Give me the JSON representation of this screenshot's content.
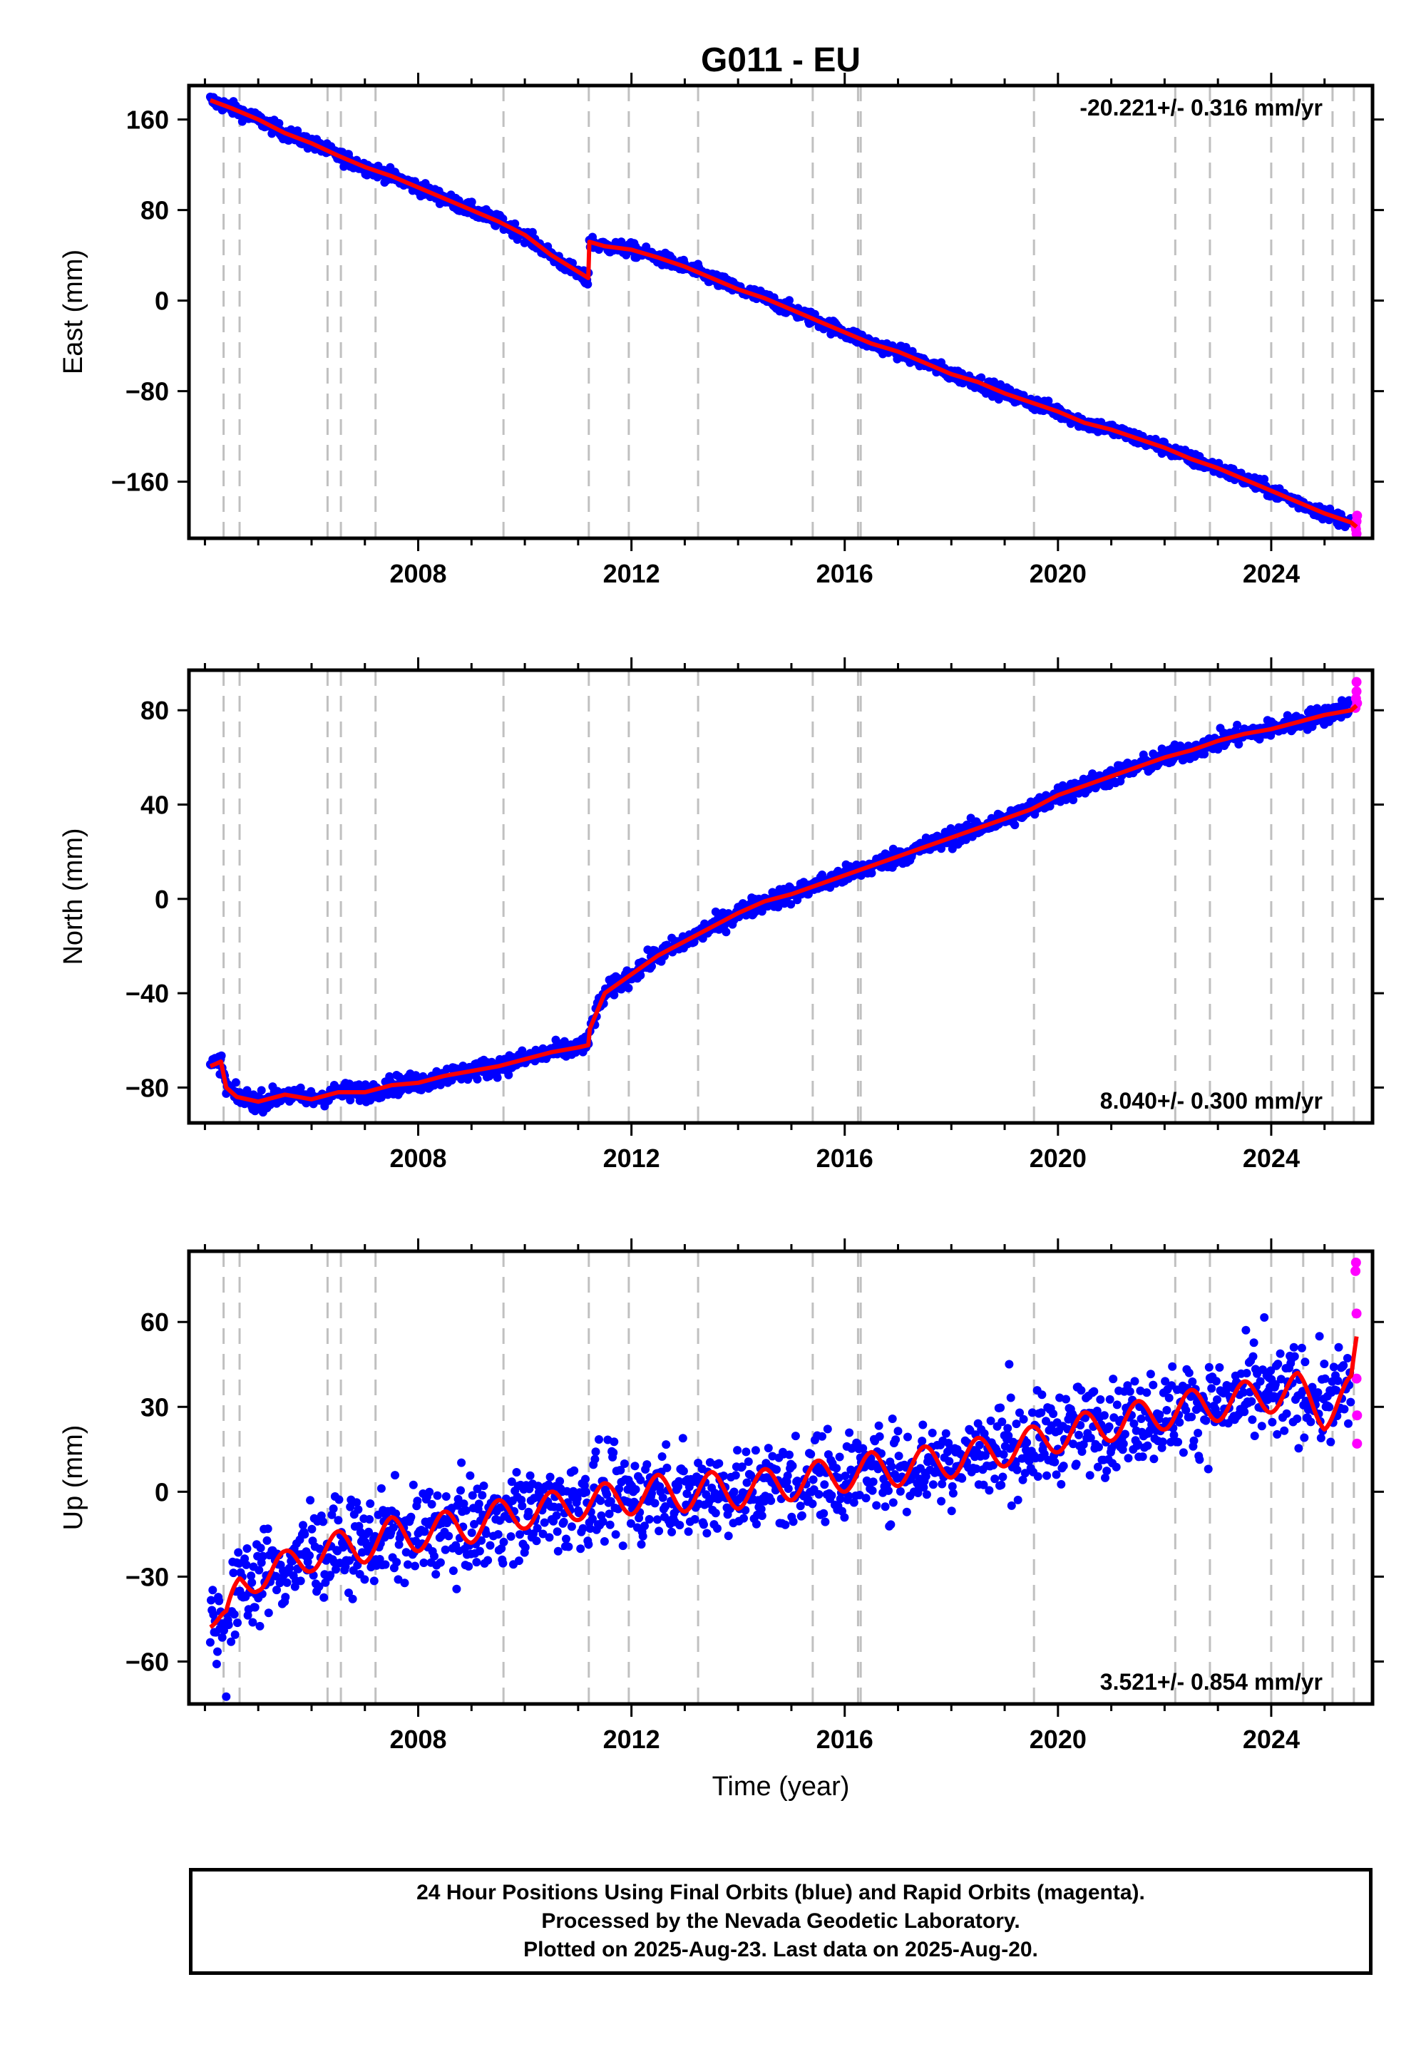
{
  "title": "G011 - EU",
  "xlabel": "Time (year)",
  "colors": {
    "final": "#0000ff",
    "rapid": "#ff00ff",
    "model": "#ff0000",
    "event_lines": "#c0c0c0"
  },
  "caption": [
    "24 Hour Positions Using Final Orbits (blue) and Rapid Orbits (magenta).",
    "Processed by the Nevada Geodetic Laboratory.",
    "Plotted on 2025-Aug-23. Last data on 2025-Aug-20."
  ],
  "chart_data": [
    {
      "type": "scatter",
      "ylabel": "East (mm)",
      "xlim": [
        2003.7,
        2025.9
      ],
      "ylim": [
        -210,
        190
      ],
      "xticks": [
        2008,
        2012,
        2016,
        2020,
        2024
      ],
      "yticks": [
        160,
        80,
        0,
        -80,
        -160
      ],
      "rate_label": "-20.221+/- 0.316 mm/yr",
      "rate_position": "top-right",
      "event_lines": [
        2004.35,
        2004.65,
        2006.3,
        2006.55,
        2007.2,
        2009.6,
        2011.2,
        2011.95,
        2013.25,
        2015.4,
        2016.25,
        2016.3,
        2019.55,
        2022.2,
        2022.85,
        2024.0,
        2024.6,
        2025.15,
        2025.55
      ],
      "series": [
        {
          "name": "Final Orbits (blue)",
          "mode": "points",
          "x": [
            2004.1,
            2004.5,
            2005.0,
            2005.5,
            2006.0,
            2006.5,
            2007.0,
            2007.5,
            2008.0,
            2008.5,
            2009.0,
            2009.5,
            2010.0,
            2010.5,
            2011.19,
            2011.21,
            2011.5,
            2012.0,
            2012.5,
            2013.0,
            2013.5,
            2014.0,
            2014.5,
            2015.0,
            2015.5,
            2016.0,
            2016.5,
            2017.0,
            2017.5,
            2018.0,
            2018.5,
            2019.0,
            2019.5,
            2020.0,
            2020.5,
            2021.0,
            2021.5,
            2022.0,
            2022.5,
            2023.0,
            2023.5,
            2024.0,
            2024.5,
            2025.0,
            2025.5
          ],
          "y": [
            177,
            170,
            160,
            148,
            139,
            128,
            118,
            110,
            100,
            90,
            80,
            70,
            58,
            40,
            17,
            52,
            48,
            45,
            38,
            30,
            20,
            10,
            2,
            -8,
            -18,
            -28,
            -38,
            -45,
            -55,
            -65,
            -72,
            -82,
            -90,
            -98,
            -108,
            -114,
            -122,
            -130,
            -140,
            -148,
            -158,
            -168,
            -178,
            -188,
            -196
          ],
          "noise": 3
        },
        {
          "name": "Rapid Orbits (magenta)",
          "mode": "points",
          "x": [
            2025.58,
            2025.59,
            2025.6,
            2025.6,
            2025.61
          ],
          "y": [
            -199,
            -202,
            -195,
            -206,
            -190
          ],
          "noise": 0
        },
        {
          "name": "Model",
          "mode": "line",
          "x": [
            2004.1,
            2004.5,
            2005.0,
            2005.5,
            2006.0,
            2006.5,
            2007.0,
            2007.5,
            2008.0,
            2008.5,
            2009.0,
            2009.5,
            2010.0,
            2010.5,
            2011.19,
            2011.21,
            2011.5,
            2012.0,
            2012.5,
            2013.0,
            2013.5,
            2014.0,
            2014.5,
            2015.0,
            2015.5,
            2016.0,
            2016.5,
            2017.0,
            2017.5,
            2018.0,
            2018.5,
            2019.0,
            2019.5,
            2020.0,
            2020.5,
            2021.0,
            2021.5,
            2022.0,
            2022.5,
            2023.0,
            2023.5,
            2024.0,
            2024.5,
            2025.0,
            2025.5,
            2025.6
          ],
          "y": [
            177,
            170,
            160,
            148,
            139,
            128,
            118,
            110,
            100,
            90,
            80,
            70,
            58,
            40,
            20,
            52,
            48,
            45,
            38,
            30,
            20,
            10,
            2,
            -8,
            -18,
            -28,
            -38,
            -45,
            -55,
            -65,
            -72,
            -82,
            -90,
            -98,
            -108,
            -114,
            -122,
            -130,
            -140,
            -148,
            -158,
            -168,
            -178,
            -188,
            -196,
            -200
          ]
        }
      ]
    },
    {
      "type": "scatter",
      "ylabel": "North (mm)",
      "xlim": [
        2003.7,
        2025.9
      ],
      "ylim": [
        -95,
        97
      ],
      "xticks": [
        2008,
        2012,
        2016,
        2020,
        2024
      ],
      "yticks": [
        80,
        40,
        0,
        -40,
        -80
      ],
      "rate_label": "8.040+/- 0.300 mm/yr",
      "rate_position": "bottom-right",
      "event_lines": [
        2004.35,
        2004.65,
        2006.3,
        2006.55,
        2007.2,
        2009.6,
        2011.2,
        2011.95,
        2013.25,
        2015.4,
        2016.25,
        2016.3,
        2019.55,
        2022.2,
        2022.85,
        2024.0,
        2024.6,
        2025.15,
        2025.55
      ],
      "series": [
        {
          "name": "Final Orbits (blue)",
          "mode": "points",
          "x": [
            2004.1,
            2004.3,
            2004.4,
            2004.6,
            2005.0,
            2005.5,
            2006.0,
            2006.5,
            2007.0,
            2007.5,
            2008.0,
            2008.5,
            2009.0,
            2009.5,
            2010.0,
            2010.5,
            2011.0,
            2011.19,
            2011.22,
            2011.5,
            2012.0,
            2012.5,
            2013.0,
            2013.5,
            2014.0,
            2014.5,
            2015.0,
            2015.5,
            2016.0,
            2016.5,
            2017.0,
            2017.5,
            2018.0,
            2018.5,
            2019.0,
            2019.5,
            2020.0,
            2020.5,
            2021.0,
            2021.5,
            2022.0,
            2022.5,
            2023.0,
            2023.5,
            2024.0,
            2024.5,
            2025.0,
            2025.5
          ],
          "y": [
            -71,
            -69,
            -80,
            -84,
            -86,
            -83,
            -85,
            -82,
            -82,
            -79,
            -78,
            -75,
            -73,
            -71,
            -68,
            -65,
            -63,
            -62,
            -55,
            -40,
            -32,
            -24,
            -18,
            -12,
            -6,
            -1,
            2,
            6,
            10,
            14,
            18,
            22,
            26,
            30,
            34,
            38,
            44,
            48,
            52,
            56,
            60,
            63,
            67,
            70,
            72,
            75,
            78,
            82
          ],
          "noise": 2
        },
        {
          "name": "Rapid Orbits (magenta)",
          "mode": "points",
          "x": [
            2025.58,
            2025.59,
            2025.6,
            2025.6,
            2025.61
          ],
          "y": [
            81,
            85,
            88,
            92,
            83
          ],
          "noise": 0
        },
        {
          "name": "Model",
          "mode": "line",
          "x": [
            2004.1,
            2004.3,
            2004.4,
            2004.6,
            2005.0,
            2005.5,
            2006.0,
            2006.5,
            2007.0,
            2007.5,
            2008.0,
            2008.5,
            2009.0,
            2009.5,
            2010.0,
            2010.5,
            2011.0,
            2011.19,
            2011.22,
            2011.5,
            2012.0,
            2012.5,
            2013.0,
            2013.5,
            2014.0,
            2014.5,
            2015.0,
            2015.5,
            2016.0,
            2016.5,
            2017.0,
            2017.5,
            2018.0,
            2018.5,
            2019.0,
            2019.5,
            2020.0,
            2020.5,
            2021.0,
            2021.5,
            2022.0,
            2022.5,
            2023.0,
            2023.5,
            2024.0,
            2024.5,
            2025.0,
            2025.5,
            2025.6
          ],
          "y": [
            -71,
            -69,
            -80,
            -84,
            -86,
            -83,
            -85,
            -82,
            -82,
            -79,
            -78,
            -75,
            -73,
            -71,
            -68,
            -65,
            -63,
            -62,
            -55,
            -40,
            -32,
            -24,
            -18,
            -12,
            -6,
            -1,
            2,
            6,
            10,
            14,
            18,
            22,
            26,
            30,
            34,
            38,
            44,
            48,
            52,
            56,
            60,
            63,
            67,
            70,
            72,
            75,
            78,
            80,
            82
          ]
        }
      ]
    },
    {
      "type": "scatter",
      "ylabel": "Up (mm)",
      "xlim": [
        2003.7,
        2025.9
      ],
      "ylim": [
        -75,
        85
      ],
      "xticks": [
        2008,
        2012,
        2016,
        2020,
        2024
      ],
      "yticks": [
        60,
        30,
        0,
        -30,
        -60
      ],
      "rate_label": "3.521+/- 0.854 mm/yr",
      "rate_position": "bottom-right",
      "event_lines": [
        2004.35,
        2004.65,
        2006.3,
        2006.55,
        2007.2,
        2009.6,
        2011.2,
        2011.95,
        2013.25,
        2015.4,
        2016.25,
        2016.3,
        2019.55,
        2022.2,
        2022.85,
        2024.0,
        2024.6,
        2025.15,
        2025.55
      ],
      "series": [
        {
          "name": "Final Orbits (blue)",
          "mode": "points",
          "x": [
            2004.1,
            2004.4,
            2004.65,
            2005.0,
            2005.5,
            2006.0,
            2006.5,
            2007.0,
            2007.5,
            2008.0,
            2008.5,
            2009.0,
            2009.5,
            2010.0,
            2010.5,
            2011.0,
            2011.5,
            2012.0,
            2012.5,
            2013.0,
            2013.5,
            2014.0,
            2014.5,
            2015.0,
            2015.5,
            2016.0,
            2016.5,
            2017.0,
            2017.5,
            2018.0,
            2018.5,
            2019.0,
            2019.5,
            2020.0,
            2020.5,
            2021.0,
            2021.5,
            2022.0,
            2022.5,
            2023.0,
            2023.5,
            2024.0,
            2024.5,
            2025.0,
            2025.5
          ],
          "y": [
            -45,
            -47,
            -34,
            -29,
            -27,
            -22,
            -20,
            -19,
            -15,
            -15,
            -13,
            -12,
            -9,
            -7,
            -6,
            -4,
            -3,
            -2,
            0,
            -1,
            1,
            0,
            2,
            3,
            5,
            6,
            8,
            8,
            10,
            11,
            13,
            15,
            17,
            20,
            22,
            24,
            26,
            28,
            30,
            31,
            33,
            34,
            36,
            32,
            35
          ],
          "noise": 8
        },
        {
          "name": "Rapid Orbits (magenta)",
          "mode": "points",
          "x": [
            2025.58,
            2025.59,
            2025.6,
            2025.6,
            2025.61,
            2025.61
          ],
          "y": [
            78,
            81,
            63,
            40,
            27,
            17
          ],
          "noise": 0
        },
        {
          "name": "Model",
          "mode": "line",
          "x": [
            2004.1,
            2004.4,
            2004.65,
            2005.0,
            2005.5,
            2006.0,
            2006.5,
            2007.0,
            2007.5,
            2008.0,
            2008.5,
            2009.0,
            2009.5,
            2010.0,
            2010.5,
            2011.0,
            2011.5,
            2012.0,
            2012.5,
            2013.0,
            2013.5,
            2014.0,
            2014.5,
            2015.0,
            2015.5,
            2016.0,
            2016.5,
            2017.0,
            2017.5,
            2018.0,
            2018.5,
            2019.0,
            2019.5,
            2020.0,
            2020.5,
            2021.0,
            2021.5,
            2022.0,
            2022.5,
            2023.0,
            2023.5,
            2024.0,
            2024.5,
            2025.0,
            2025.5,
            2025.6
          ],
          "y": [
            -43,
            -47,
            -34,
            -29,
            -27,
            -22,
            -20,
            -19,
            -15,
            -15,
            -13,
            -12,
            -9,
            -7,
            -6,
            -4,
            -3,
            -2,
            0,
            -1,
            1,
            0,
            2,
            3,
            5,
            6,
            8,
            8,
            10,
            11,
            13,
            15,
            17,
            20,
            22,
            24,
            26,
            28,
            30,
            31,
            33,
            34,
            36,
            28,
            35,
            50
          ],
          "seasonal": 6
        }
      ]
    }
  ]
}
